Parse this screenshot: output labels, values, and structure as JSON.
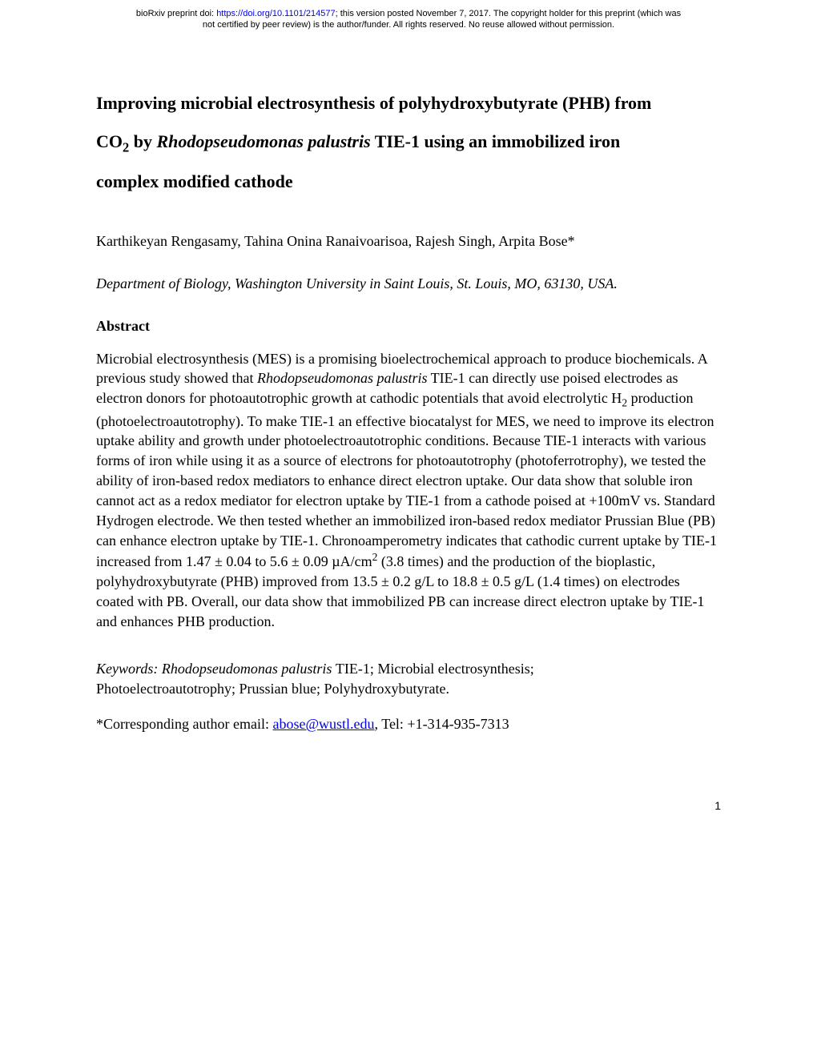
{
  "header": {
    "line1_prefix": "bioRxiv preprint doi: ",
    "doi_url": "https://doi.org/10.1101/214577",
    "line1_suffix": "; this version posted November 7, 2017. The copyright holder for this preprint (which was",
    "line2": "not certified by peer review) is the author/funder. All rights reserved. No reuse allowed without permission."
  },
  "title": {
    "part1": "Improving microbial electrosynthesis of polyhydroxybutyrate (PHB) from ",
    "part2_pre": "CO",
    "part2_sub": "2",
    "part2_mid": " by ",
    "part2_italic": "Rhodopseudomonas palustris",
    "part2_post": " TIE-1 using an immobilized iron ",
    "part3": "complex modified cathode"
  },
  "authors": "Karthikeyan Rengasamy, Tahina Onina Ranaivoarisoa, Rajesh Singh, Arpita Bose*",
  "affiliation": "Department of Biology, Washington University in Saint Louis, St. Louis, MO, 63130, USA.",
  "abstract_heading": "Abstract",
  "abstract": {
    "p1": "Microbial electrosynthesis (MES) is a promising bioelectrochemical approach to produce biochemicals. A previous study showed that ",
    "p1_italic": "Rhodopseudomonas palustris",
    "p1b": " TIE-1 can directly use poised electrodes as electron donors for photoautotrophic growth at cathodic potentials that avoid electrolytic H",
    "p1_sub": "2",
    "p1c": " production (photoelectroautotrophy). To make TIE-1 an effective biocatalyst for MES, we need to improve its electron uptake ability and growth under photoelectroautotrophic conditions. Because TIE-1 interacts with various forms of iron while using it as a source of electrons for photoautotrophy (photoferrotrophy), we tested the ability of iron-based redox mediators to enhance direct electron uptake. Our data show that soluble iron cannot act as a redox mediator for electron uptake by TIE-1 from a cathode poised at +100mV vs. Standard Hydrogen electrode. We then tested whether an immobilized iron-based redox mediator Prussian Blue (PB) can enhance electron uptake by TIE-1. Chronoamperometry indicates that cathodic current uptake by TIE-1 increased from 1.47 ± 0.04  to 5.6 ± 0.09 µA/cm",
    "p1_sup": "2",
    "p1d": " (3.8 times) and the production of the bioplastic, polyhydroxybutyrate (PHB) improved from 13.5 ± 0.2 g/L to 18.8 ± 0.5  g/L (1.4 times) on electrodes coated with PB. Overall, our data show that immobilized PB can increase direct electron uptake by TIE-1 and enhances PHB production."
  },
  "keywords": {
    "label": "Keywords: Rhodopseudomonas palustris ",
    "plain1": "TIE-1; Microbial electrosynthesis;",
    "line2": "Photoelectroautotrophy; Prussian blue; Polyhydroxybutyrate."
  },
  "corresponding": {
    "prefix": "*Corresponding author email: ",
    "email": "abose@wustl.edu",
    "suffix": ", Tel: +1-314-935-7313"
  },
  "page_number": "1"
}
